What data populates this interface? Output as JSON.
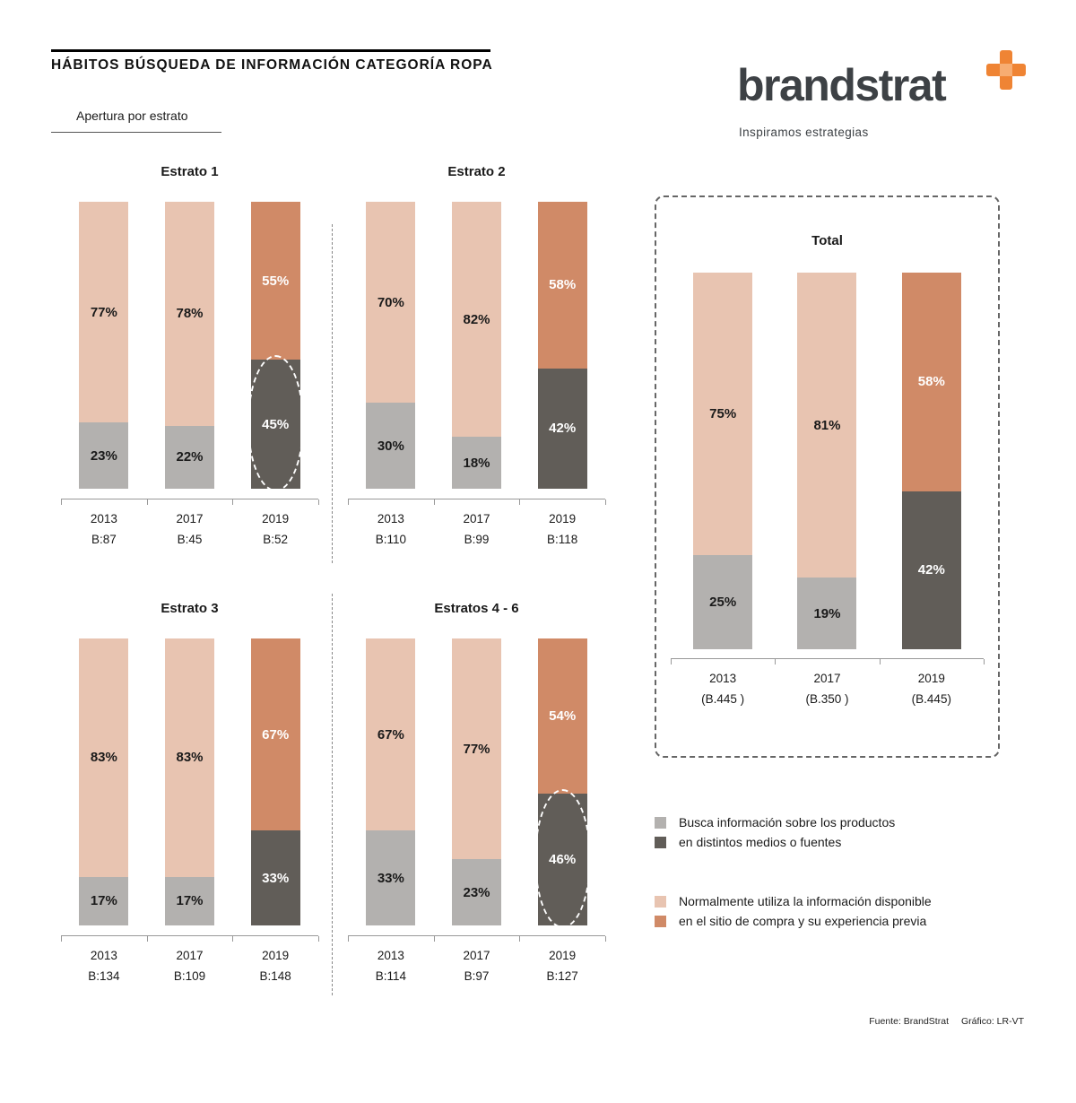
{
  "header": {
    "title": "HÁBITOS BÚSQUEDA DE INFORMACIÓN CATEGORÍA ROPA",
    "section_label": "Apertura por estrato"
  },
  "logo": {
    "wordmark": "brandstrat",
    "tagline": "Inspiramos estrategias",
    "plus_color": "#ef8434",
    "plus_center_color": "#f7ad72"
  },
  "colors": {
    "top_old": "#e8c4b1",
    "top_new": "#d08a67",
    "bottom_old": "#b3b1af",
    "bottom_new": "#615d58"
  },
  "legend": [
    {
      "chips": [
        "#b3b1af",
        "#615d58"
      ],
      "lines": [
        "Busca información sobre los productos",
        "en distintos medios o fuentes"
      ]
    },
    {
      "chips": [
        "#e8c4b1",
        "#d08a67"
      ],
      "lines": [
        "Normalmente utiliza la información disponible",
        "en el sitio de compra y su experiencia previa"
      ]
    }
  ],
  "footer": {
    "source": "Fuente: BrandStrat",
    "credit": "Gráfico: LR-VT"
  },
  "chart_data": [
    {
      "type": "bar",
      "stacked": true,
      "title": "Estrato 1",
      "unit": "%",
      "ylim": [
        0,
        100
      ],
      "categories": [
        "2013",
        "2017",
        "2019"
      ],
      "bases": [
        "B:87",
        "B:45",
        "B:52"
      ],
      "variants": [
        "old",
        "old",
        "new"
      ],
      "highlight": [
        false,
        false,
        true
      ],
      "series": [
        {
          "name": "Normalmente utiliza la información disponible en el sitio de compra y su experiencia previa",
          "position": "top",
          "values": [
            77,
            78,
            55
          ]
        },
        {
          "name": "Busca información sobre los productos en distintos medios o fuentes",
          "position": "bottom",
          "values": [
            23,
            22,
            45
          ]
        }
      ]
    },
    {
      "type": "bar",
      "stacked": true,
      "title": "Estrato 2",
      "unit": "%",
      "ylim": [
        0,
        100
      ],
      "categories": [
        "2013",
        "2017",
        "2019"
      ],
      "bases": [
        "B:110",
        "B:99",
        "B:118"
      ],
      "variants": [
        "old",
        "old",
        "new"
      ],
      "highlight": [
        false,
        false,
        false
      ],
      "series": [
        {
          "name": "Normalmente utiliza la información disponible en el sitio de compra y su experiencia previa",
          "position": "top",
          "values": [
            70,
            82,
            58
          ]
        },
        {
          "name": "Busca información sobre los productos en distintos medios o fuentes",
          "position": "bottom",
          "values": [
            30,
            18,
            42
          ]
        }
      ]
    },
    {
      "type": "bar",
      "stacked": true,
      "title": "Estrato 3",
      "unit": "%",
      "ylim": [
        0,
        100
      ],
      "categories": [
        "2013",
        "2017",
        "2019"
      ],
      "bases": [
        "B:134",
        "B:109",
        "B:148"
      ],
      "variants": [
        "old",
        "old",
        "new"
      ],
      "highlight": [
        false,
        false,
        false
      ],
      "series": [
        {
          "name": "Normalmente utiliza la información disponible en el sitio de compra y su experiencia previa",
          "position": "top",
          "values": [
            83,
            83,
            67
          ]
        },
        {
          "name": "Busca información sobre los productos en distintos medios o fuentes",
          "position": "bottom",
          "values": [
            17,
            17,
            33
          ]
        }
      ]
    },
    {
      "type": "bar",
      "stacked": true,
      "title": "Estratos 4 - 6",
      "unit": "%",
      "ylim": [
        0,
        100
      ],
      "categories": [
        "2013",
        "2017",
        "2019"
      ],
      "bases": [
        "B:114",
        "B:97",
        "B:127"
      ],
      "variants": [
        "old",
        "old",
        "new"
      ],
      "highlight": [
        false,
        false,
        true
      ],
      "series": [
        {
          "name": "Normalmente utiliza la información disponible en el sitio de compra y su experiencia previa",
          "position": "top",
          "values": [
            67,
            77,
            54
          ]
        },
        {
          "name": "Busca información sobre los productos en distintos medios o fuentes",
          "position": "bottom",
          "values": [
            33,
            23,
            46
          ]
        }
      ]
    },
    {
      "type": "bar",
      "stacked": true,
      "title": "Total",
      "unit": "%",
      "ylim": [
        0,
        100
      ],
      "categories": [
        "2013",
        "2017",
        "2019"
      ],
      "bases": [
        "(B.445 )",
        "(B.350 )",
        "(B.445)"
      ],
      "variants": [
        "old",
        "old",
        "new"
      ],
      "highlight": [
        false,
        false,
        false
      ],
      "series": [
        {
          "name": "Normalmente utiliza la información disponible en el sitio de compra y su experiencia previa",
          "position": "top",
          "values": [
            75,
            81,
            58
          ]
        },
        {
          "name": "Busca información sobre los productos en distintos medios o fuentes",
          "position": "bottom",
          "values": [
            25,
            19,
            42
          ]
        }
      ]
    }
  ]
}
